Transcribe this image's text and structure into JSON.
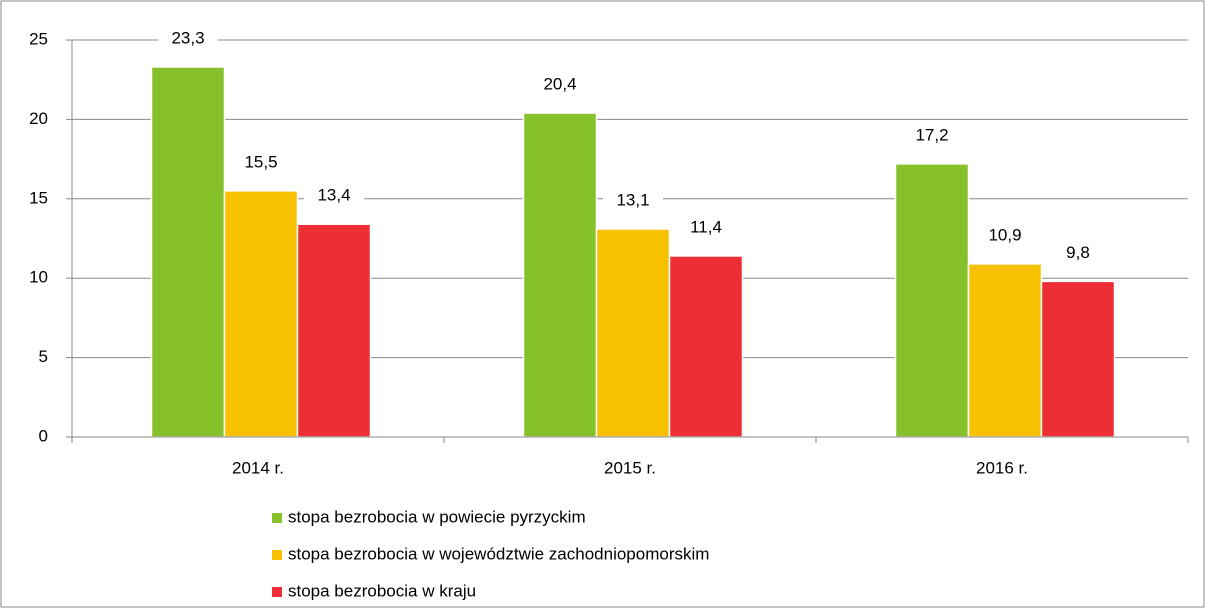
{
  "chart_data": {
    "type": "bar",
    "categories": [
      "2014 r.",
      "2015 r.",
      "2016 r."
    ],
    "series": [
      {
        "name": "stopa bezrobocia w powiecie pyrzyckim",
        "color": "#86c12b",
        "values": [
          23.3,
          20.4,
          17.2
        ],
        "value_labels": [
          "23,3",
          "20,4",
          "17,2"
        ]
      },
      {
        "name": "stopa bezrobocia w województwie zachodniopomorskim",
        "color": "#f8c100",
        "values": [
          15.5,
          13.1,
          10.9
        ],
        "value_labels": [
          "15,5",
          "13,1",
          "10,9"
        ]
      },
      {
        "name": "stopa bezrobocia w kraju",
        "color": "#ee2e35",
        "values": [
          13.4,
          11.4,
          9.8
        ],
        "value_labels": [
          "13,4",
          "11,4",
          "9,8"
        ]
      }
    ],
    "ylim": [
      0,
      25
    ],
    "yticks": [
      0,
      5,
      10,
      15,
      20,
      25
    ],
    "grid": true
  }
}
